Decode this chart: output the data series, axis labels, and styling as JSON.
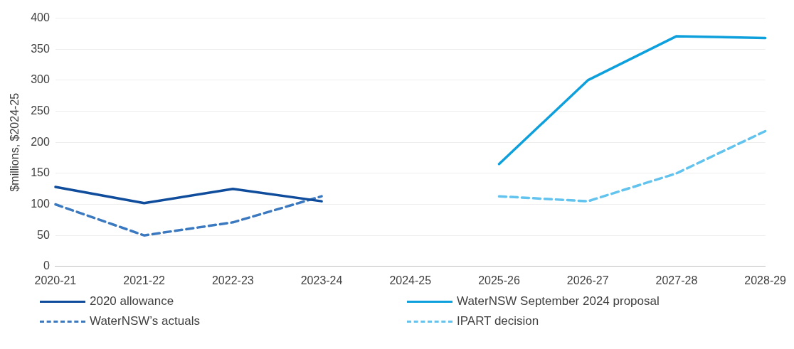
{
  "chart_data": {
    "type": "line",
    "ylabel": "$millions, $2024-25",
    "categories": [
      "2020-21",
      "2021-22",
      "2022-23",
      "2023-24",
      "2024-25",
      "2025-26",
      "2026-27",
      "2027-28",
      "2028-29"
    ],
    "series": [
      {
        "name": "2020 allowance",
        "color": "#0f4c9c",
        "line_style": "solid",
        "values": [
          128,
          102,
          125,
          105,
          null,
          null,
          null,
          null,
          null
        ]
      },
      {
        "name": "WaterNSW September 2024 proposal",
        "color": "#0ea0dc",
        "line_style": "solid",
        "values": [
          null,
          null,
          null,
          null,
          null,
          165,
          300,
          371,
          368
        ]
      },
      {
        "name": "WaterNSW’s actuals",
        "color": "#3a78c0",
        "line_style": "dashed",
        "values": [
          100,
          50,
          71,
          113,
          null,
          null,
          null,
          null,
          null
        ]
      },
      {
        "name": "IPART decision",
        "color": "#62c3ee",
        "line_style": "dashed",
        "values": [
          null,
          null,
          null,
          null,
          null,
          113,
          105,
          150,
          218
        ]
      }
    ],
    "ylim": [
      0,
      400
    ],
    "yticks": [
      0,
      50,
      100,
      150,
      200,
      250,
      300,
      350,
      400
    ],
    "grid": "y",
    "legend": "bottom",
    "marker": "none"
  }
}
